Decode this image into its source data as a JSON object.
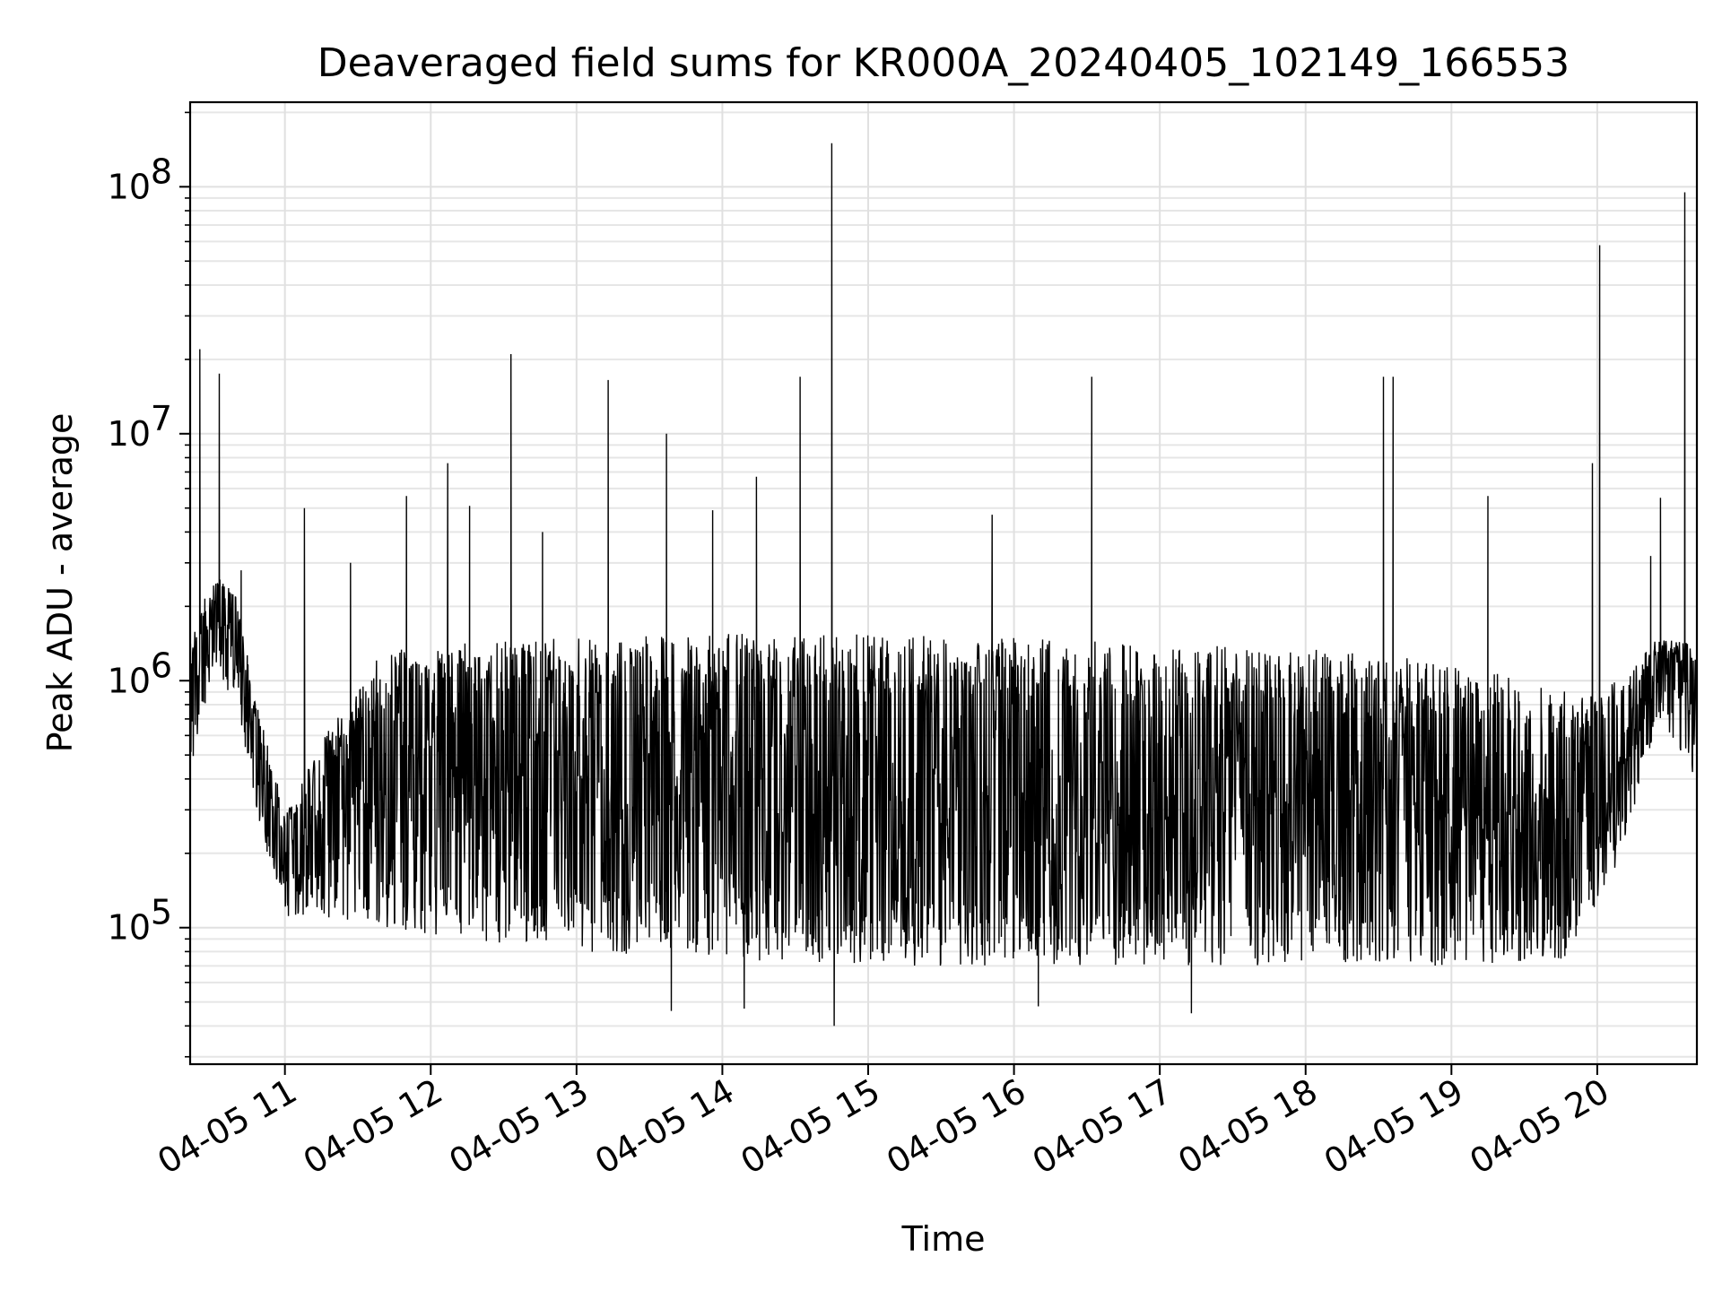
{
  "chart_data": {
    "type": "line",
    "title": "Deaveraged field sums for KR000A_20240405_102149_166553",
    "xlabel": "Time",
    "ylabel": "Peak ADU - average",
    "x_axis": {
      "kind": "datetime",
      "range": [
        "2024-04-05 10:21",
        "2024-04-05 20:41"
      ],
      "tick_labels": [
        "04-05 11",
        "04-05 12",
        "04-05 13",
        "04-05 14",
        "04-05 15",
        "04-05 16",
        "04-05 17",
        "04-05 18",
        "04-05 19",
        "04-05 20"
      ],
      "tick_label_rotation_deg": 30
    },
    "y_axis": {
      "scale": "log",
      "range": [
        28000,
        220000000
      ],
      "tick_values": [
        100000,
        1000000,
        10000000,
        100000000
      ],
      "tick_labels": [
        {
          "base": "10",
          "exp": "5"
        },
        {
          "base": "10",
          "exp": "6"
        },
        {
          "base": "10",
          "exp": "7"
        },
        {
          "base": "10",
          "exp": "8"
        }
      ]
    },
    "grid": true,
    "legend": "none",
    "series": [
      {
        "color": "#000000",
        "envelope": [
          {
            "x": "2024-04-05 10:21",
            "low": 400000,
            "high": 1400000
          },
          {
            "x": "2024-04-05 10:30",
            "low": 1100000,
            "high": 2800000
          },
          {
            "x": "2024-04-05 10:40",
            "low": 800000,
            "high": 2200000
          },
          {
            "x": "2024-04-05 10:50",
            "low": 250000,
            "high": 700000
          },
          {
            "x": "2024-04-05 11:00",
            "low": 110000,
            "high": 300000
          },
          {
            "x": "2024-04-05 11:20",
            "low": 110000,
            "high": 700000
          },
          {
            "x": "2024-04-05 11:40",
            "low": 100000,
            "high": 1300000
          },
          {
            "x": "2024-04-05 12:00",
            "low": 90000,
            "high": 1400000
          },
          {
            "x": "2024-04-05 13:00",
            "low": 80000,
            "high": 1500000
          },
          {
            "x": "2024-04-05 14:00",
            "low": 75000,
            "high": 1550000
          },
          {
            "x": "2024-04-05 15:00",
            "low": 70000,
            "high": 1550000
          },
          {
            "x": "2024-04-05 16:00",
            "low": 70000,
            "high": 1500000
          },
          {
            "x": "2024-04-05 17:00",
            "low": 70000,
            "high": 1400000
          },
          {
            "x": "2024-04-05 18:00",
            "low": 70000,
            "high": 1350000
          },
          {
            "x": "2024-04-05 19:00",
            "low": 70000,
            "high": 1200000
          },
          {
            "x": "2024-04-05 19:50",
            "low": 75000,
            "high": 900000
          },
          {
            "x": "2024-04-05 20:10",
            "low": 200000,
            "high": 1000000
          },
          {
            "x": "2024-04-05 20:25",
            "low": 700000,
            "high": 1500000
          },
          {
            "x": "2024-04-05 20:41",
            "low": 400000,
            "high": 1400000
          }
        ],
        "spikes": [
          {
            "x": "2024-04-05 10:25",
            "y": 22000000
          },
          {
            "x": "2024-04-05 10:33",
            "y": 17500000
          },
          {
            "x": "2024-04-05 10:42",
            "y": 2800000
          },
          {
            "x": "2024-04-05 11:08",
            "y": 5000000
          },
          {
            "x": "2024-04-05 11:27",
            "y": 3000000
          },
          {
            "x": "2024-04-05 11:50",
            "y": 5600000
          },
          {
            "x": "2024-04-05 12:07",
            "y": 7600000
          },
          {
            "x": "2024-04-05 12:16",
            "y": 5100000
          },
          {
            "x": "2024-04-05 12:33",
            "y": 21000000
          },
          {
            "x": "2024-04-05 12:46",
            "y": 4000000
          },
          {
            "x": "2024-04-05 13:13",
            "y": 16500000
          },
          {
            "x": "2024-04-05 13:37",
            "y": 10000000
          },
          {
            "x": "2024-04-05 13:56",
            "y": 4900000
          },
          {
            "x": "2024-04-05 14:14",
            "y": 6700000
          },
          {
            "x": "2024-04-05 14:32",
            "y": 17000000
          },
          {
            "x": "2024-04-05 14:45",
            "y": 150000000
          },
          {
            "x": "2024-04-05 15:51",
            "y": 4700000
          },
          {
            "x": "2024-04-05 16:32",
            "y": 17000000
          },
          {
            "x": "2024-04-05 18:32",
            "y": 17000000
          },
          {
            "x": "2024-04-05 18:36",
            "y": 17000000
          },
          {
            "x": "2024-04-05 19:15",
            "y": 5600000
          },
          {
            "x": "2024-04-05 19:58",
            "y": 7600000
          },
          {
            "x": "2024-04-05 20:01",
            "y": 58000000
          },
          {
            "x": "2024-04-05 20:22",
            "y": 3200000
          },
          {
            "x": "2024-04-05 20:26",
            "y": 5500000
          },
          {
            "x": "2024-04-05 20:36",
            "y": 95000000
          }
        ],
        "dips": [
          {
            "x": "2024-04-05 13:39",
            "y": 46000
          },
          {
            "x": "2024-04-05 14:09",
            "y": 47000
          },
          {
            "x": "2024-04-05 14:46",
            "y": 40000
          },
          {
            "x": "2024-04-05 16:10",
            "y": 48000
          },
          {
            "x": "2024-04-05 17:13",
            "y": 45000
          }
        ]
      }
    ]
  }
}
